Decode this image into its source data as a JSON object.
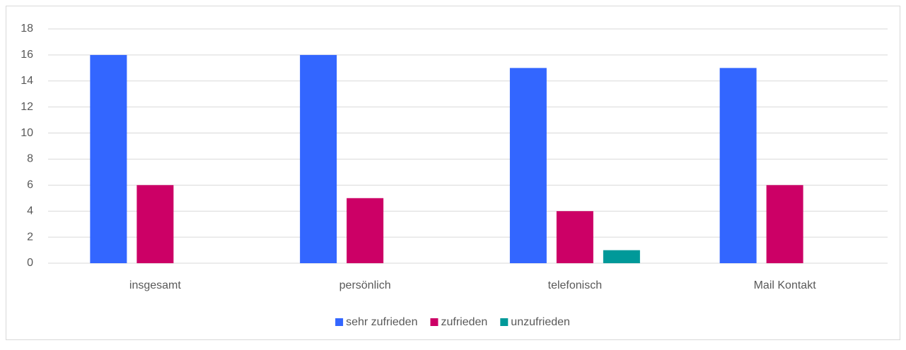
{
  "chart_data": {
    "type": "bar",
    "categories": [
      "insgesamt",
      "persönlich",
      "telefonisch",
      "Mail Kontakt"
    ],
    "series": [
      {
        "name": "sehr zufrieden",
        "color": "#3366ff",
        "values": [
          16,
          16,
          15,
          15
        ]
      },
      {
        "name": "zufrieden",
        "color": "#cc0066",
        "values": [
          6,
          5,
          4,
          6
        ]
      },
      {
        "name": "unzufrieden",
        "color": "#009999",
        "values": [
          0,
          0,
          1,
          0
        ]
      }
    ],
    "ylim": [
      0,
      18
    ],
    "yticks": [
      0,
      2,
      4,
      6,
      8,
      10,
      12,
      14,
      16,
      18
    ],
    "grid": true,
    "legend": "bottom"
  }
}
